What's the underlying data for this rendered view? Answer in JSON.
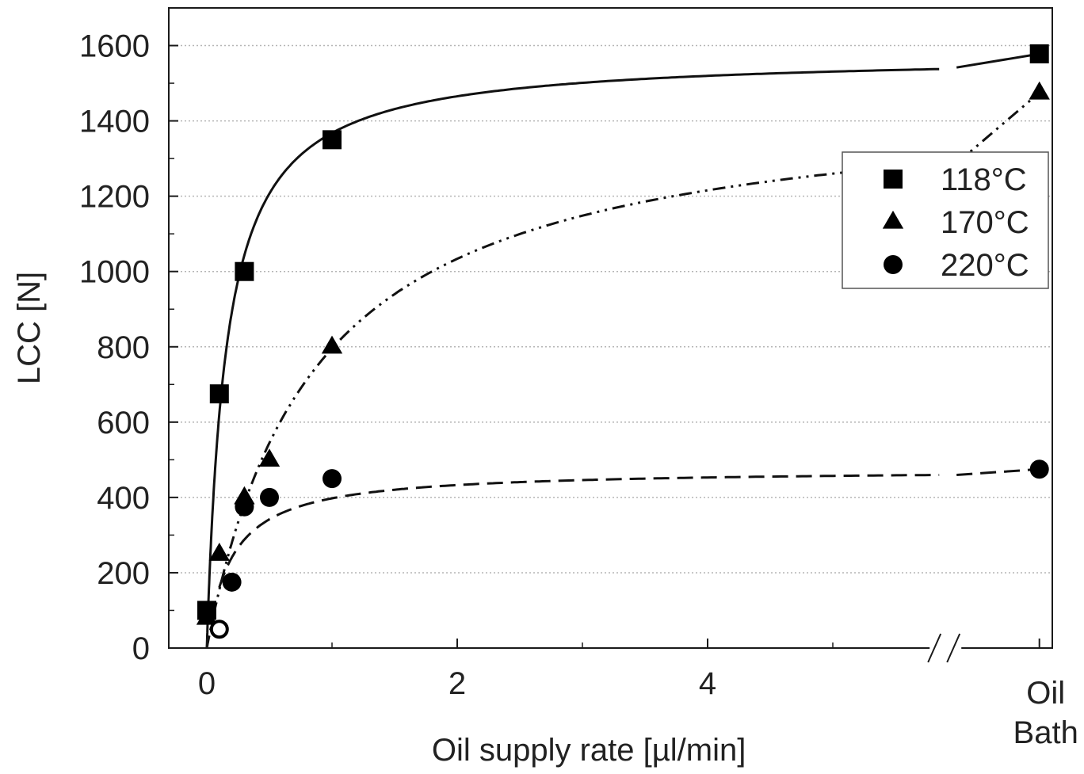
{
  "chart_data": {
    "type": "scatter",
    "xlabel": "Oil supply rate [µl/min]",
    "ylabel": "LCC [N]",
    "xlim": [
      -0.25,
      6.7
    ],
    "ylim": [
      0,
      1700
    ],
    "x_ticks": [
      0,
      2,
      4
    ],
    "x_tick_labels": [
      "0",
      "2",
      "4"
    ],
    "x_break_at": 5.9,
    "oil_bath_x": 6.65,
    "oil_bath_label": [
      "Oil",
      "Bath"
    ],
    "y_ticks": [
      0,
      200,
      400,
      600,
      800,
      1000,
      1200,
      1400,
      1600
    ],
    "y_tick_labels": [
      "0",
      "200",
      "400",
      "600",
      "800",
      "1000",
      "1200",
      "1400",
      "1600"
    ],
    "grid": "horizontal-dotted",
    "legend_position": "top-right",
    "series": [
      {
        "name": "118°C",
        "marker": "square",
        "line": "solid",
        "x": [
          0,
          0.1,
          0.3,
          1.0
        ],
        "y": [
          100,
          675,
          1000,
          1350
        ],
        "oil_bath_y": 1578
      },
      {
        "name": "170°C",
        "marker": "triangle",
        "line": "dash-dot-dot",
        "x": [
          0,
          0.1,
          0.3,
          0.5,
          1.0
        ],
        "y": [
          80,
          250,
          400,
          500,
          800
        ],
        "oil_bath_y": 1475
      },
      {
        "name": "220°C",
        "marker": "circle",
        "line": "dashed",
        "x": [
          0.1,
          0.2,
          0.3,
          0.5,
          1.0
        ],
        "y": [
          50,
          175,
          375,
          400,
          450
        ],
        "open_point_indices": [
          0
        ],
        "oil_bath_y": 475
      }
    ]
  }
}
